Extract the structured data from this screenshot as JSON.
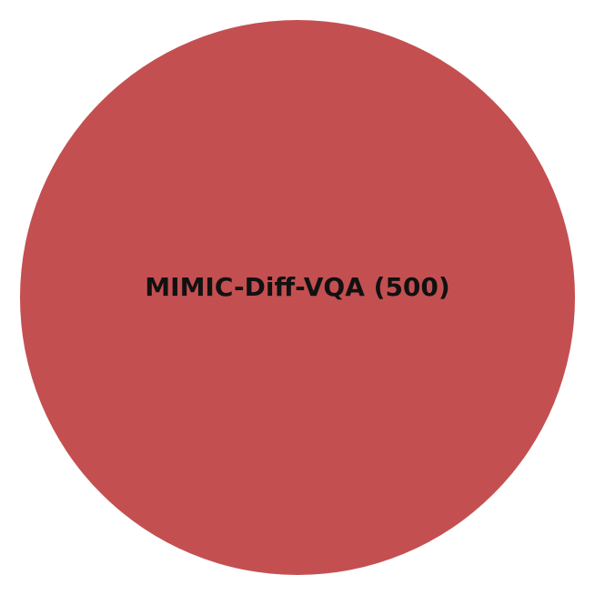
{
  "chart_data": {
    "type": "pie",
    "slices": [
      {
        "label": "MIMIC-Diff-VQA",
        "value": 500,
        "display_label": "MIMIC-Diff-VQA (500)",
        "color": "#C44F51"
      }
    ]
  }
}
